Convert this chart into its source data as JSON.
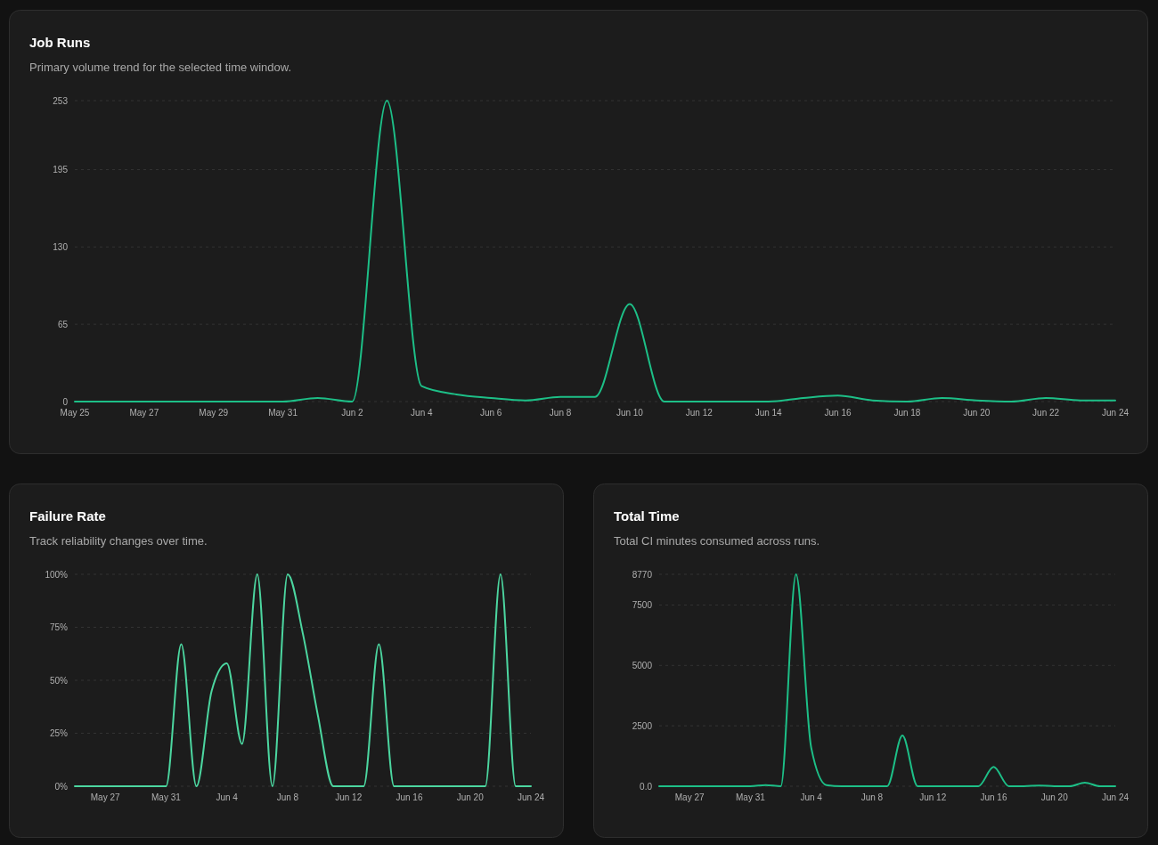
{
  "chart_data": [
    {
      "type": "line",
      "title": "Job Runs",
      "subtitle": "Primary volume trend for the selected time window.",
      "x": [
        "--05-25",
        "--05-26",
        "--05-27",
        "--05-28",
        "--05-29",
        "--05-30",
        "--05-31",
        "--06-01",
        "--06-02",
        "--06-03",
        "--06-04",
        "--06-05",
        "--06-06",
        "--06-07",
        "--06-08",
        "--06-09",
        "--06-10",
        "--06-11",
        "--06-12",
        "--06-13",
        "--06-14",
        "--06-15",
        "--06-16",
        "--06-17",
        "--06-18",
        "--06-19",
        "--06-20",
        "--06-21",
        "--06-22",
        "--06-23",
        "--06-24"
      ],
      "series": [
        {
          "color": "#1dbf87",
          "values": [
            0,
            0,
            0,
            0,
            0,
            0,
            0,
            3,
            0,
            253,
            13,
            6,
            3,
            1,
            4,
            4,
            82,
            0,
            0,
            0,
            0,
            3,
            5,
            1,
            0,
            3,
            1,
            0,
            3,
            1,
            1
          ]
        }
      ],
      "xlim": [
        "--05-25",
        "--06-24"
      ],
      "xticks": [
        {
          "value": "--05-25",
          "label": "May 25"
        },
        {
          "value": "--05-27",
          "label": "May 27"
        },
        {
          "value": "--05-29",
          "label": "May 29"
        },
        {
          "value": "--05-31",
          "label": "May 31"
        },
        {
          "value": "--06-02",
          "label": "Jun 2"
        },
        {
          "value": "--06-04",
          "label": "Jun 4"
        },
        {
          "value": "--06-06",
          "label": "Jun 6"
        },
        {
          "value": "--06-08",
          "label": "Jun 8"
        },
        {
          "value": "--06-10",
          "label": "Jun 10"
        },
        {
          "value": "--06-12",
          "label": "Jun 12"
        },
        {
          "value": "--06-14",
          "label": "Jun 14"
        },
        {
          "value": "--06-16",
          "label": "Jun 16"
        },
        {
          "value": "--06-18",
          "label": "Jun 18"
        },
        {
          "value": "--06-20",
          "label": "Jun 20"
        },
        {
          "value": "--06-22",
          "label": "Jun 22"
        },
        {
          "value": "--06-24",
          "label": "Jun 24"
        }
      ],
      "ylim": [
        0,
        253
      ],
      "yticks": [
        0,
        65,
        130,
        195,
        253
      ],
      "grid": "y",
      "marker": "none",
      "line_style": "solid"
    },
    {
      "type": "line",
      "title": "Failure Rate",
      "subtitle": "Track reliability changes over time.",
      "x": [
        "--05-25",
        "--05-26",
        "--05-27",
        "--05-28",
        "--05-29",
        "--05-30",
        "--05-31",
        "--06-01",
        "--06-02",
        "--06-03",
        "--06-04",
        "--06-05",
        "--06-06",
        "--06-07",
        "--06-08",
        "--06-09",
        "--06-10",
        "--06-11",
        "--06-12",
        "--06-13",
        "--06-14",
        "--06-15",
        "--06-16",
        "--06-17",
        "--06-18",
        "--06-19",
        "--06-20",
        "--06-21",
        "--06-22",
        "--06-23",
        "--06-24"
      ],
      "series": [
        {
          "color": "#4cd6a0",
          "values": [
            0,
            0,
            0,
            0,
            0,
            0,
            0,
            67,
            0,
            45,
            58,
            20,
            100,
            0,
            100,
            72,
            33,
            0,
            0,
            0,
            67,
            0,
            0,
            0,
            0,
            0,
            0,
            0,
            100,
            0,
            0
          ]
        }
      ],
      "xlim": [
        "--05-25",
        "--06-24"
      ],
      "xticks": [
        {
          "value": "--05-27",
          "label": "May 27"
        },
        {
          "value": "--05-31",
          "label": "May 31"
        },
        {
          "value": "--06-04",
          "label": "Jun 4"
        },
        {
          "value": "--06-08",
          "label": "Jun 8"
        },
        {
          "value": "--06-12",
          "label": "Jun 12"
        },
        {
          "value": "--06-16",
          "label": "Jun 16"
        },
        {
          "value": "--06-20",
          "label": "Jun 20"
        },
        {
          "value": "--06-24",
          "label": "Jun 24"
        }
      ],
      "ylim": [
        0,
        100
      ],
      "yticks": [
        {
          "value": 0,
          "label": "0%"
        },
        {
          "value": 25,
          "label": "25%"
        },
        {
          "value": 50,
          "label": "50%"
        },
        {
          "value": 75,
          "label": "75%"
        },
        {
          "value": 100,
          "label": "100%"
        }
      ],
      "grid": "y",
      "marker": "none",
      "line_style": "solid"
    },
    {
      "type": "line",
      "title": "Total Time",
      "subtitle": "Total CI minutes consumed across runs.",
      "x": [
        "--05-25",
        "--05-26",
        "--05-27",
        "--05-28",
        "--05-29",
        "--05-30",
        "--05-31",
        "--06-01",
        "--06-02",
        "--06-03",
        "--06-04",
        "--06-05",
        "--06-06",
        "--06-07",
        "--06-08",
        "--06-09",
        "--06-10",
        "--06-11",
        "--06-12",
        "--06-13",
        "--06-14",
        "--06-15",
        "--06-16",
        "--06-17",
        "--06-18",
        "--06-19",
        "--06-20",
        "--06-21",
        "--06-22",
        "--06-23",
        "--06-24"
      ],
      "series": [
        {
          "color": "#1dbf87",
          "values": [
            0,
            0,
            0,
            0,
            0,
            0,
            0,
            50,
            0,
            8770,
            1600,
            50,
            0,
            0,
            0,
            0,
            2100,
            0,
            0,
            0,
            0,
            0,
            800,
            0,
            0,
            30,
            0,
            0,
            150,
            0,
            0
          ]
        }
      ],
      "xlim": [
        "--05-25",
        "--06-24"
      ],
      "xticks": [
        {
          "value": "--05-27",
          "label": "May 27"
        },
        {
          "value": "--05-31",
          "label": "May 31"
        },
        {
          "value": "--06-04",
          "label": "Jun 4"
        },
        {
          "value": "--06-08",
          "label": "Jun 8"
        },
        {
          "value": "--06-12",
          "label": "Jun 12"
        },
        {
          "value": "--06-16",
          "label": "Jun 16"
        },
        {
          "value": "--06-20",
          "label": "Jun 20"
        },
        {
          "value": "--06-24",
          "label": "Jun 24"
        }
      ],
      "ylim": [
        0,
        8770
      ],
      "yticks": [
        {
          "value": 0,
          "label": "0.0"
        },
        2500,
        5000,
        7500,
        8770
      ],
      "grid": "y",
      "marker": "none",
      "line_style": "solid"
    }
  ]
}
